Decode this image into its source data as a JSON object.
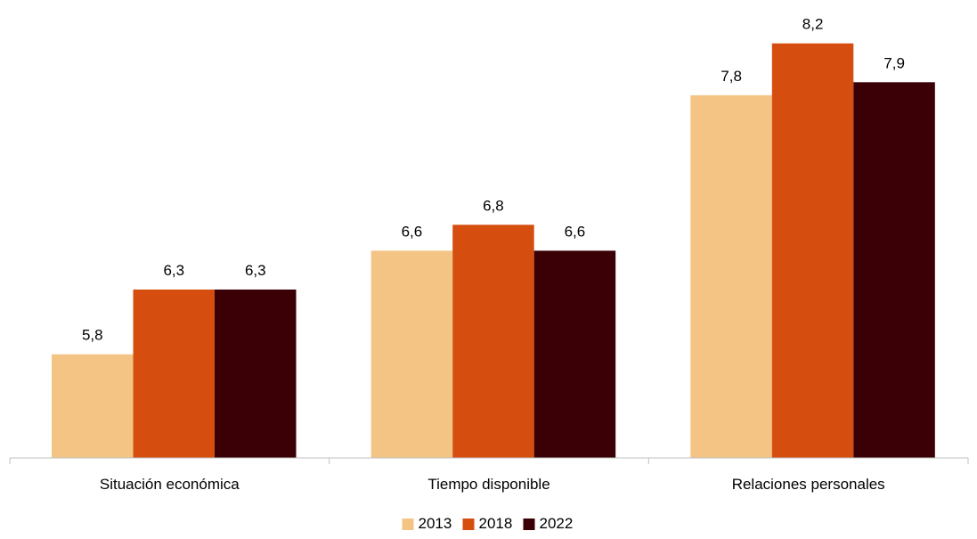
{
  "chart_data": {
    "type": "bar",
    "title": "",
    "xlabel": "",
    "ylabel": "",
    "ylim": [
      5,
      8.5
    ],
    "categories": [
      "Situación económica",
      "Tiempo disponible",
      "Relaciones personales"
    ],
    "series": [
      {
        "name": "2013",
        "color": "#F4C484",
        "values": [
          5.8,
          6.6,
          7.8
        ],
        "labels": [
          "5,8",
          "6,6",
          "7,8"
        ]
      },
      {
        "name": "2018",
        "color": "#D54E10",
        "values": [
          6.3,
          6.8,
          8.2
        ],
        "labels": [
          "6,3",
          "6,8",
          "8,2"
        ]
      },
      {
        "name": "2022",
        "color": "#3A0005",
        "values": [
          6.3,
          6.6,
          7.9
        ],
        "labels": [
          "6,3",
          "6,6",
          "7,9"
        ]
      }
    ],
    "legend": {
      "position": "bottom"
    },
    "grid": false,
    "axis_color": "#BFBFBF"
  }
}
